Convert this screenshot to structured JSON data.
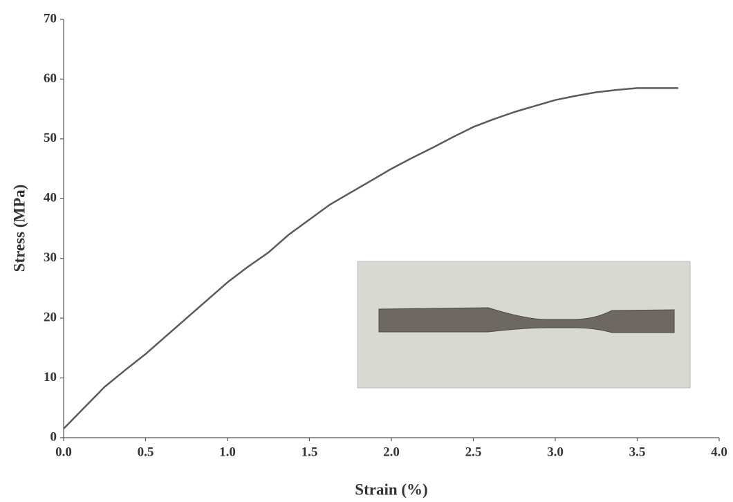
{
  "chart_data": {
    "type": "line",
    "x_label": "Strain (%)",
    "y_label": "Stress (MPa)",
    "x": [
      0,
      0.125,
      0.25,
      0.375,
      0.5,
      0.625,
      0.75,
      0.875,
      1.0,
      1.125,
      1.25,
      1.375,
      1.5,
      1.625,
      1.75,
      1.875,
      2.0,
      2.125,
      2.25,
      2.375,
      2.5,
      2.625,
      2.75,
      2.875,
      3.0,
      3.125,
      3.25,
      3.375,
      3.5,
      3.625,
      3.75
    ],
    "values": [
      1.5,
      5,
      8.5,
      11.3,
      14,
      17,
      20,
      23,
      26,
      28.6,
      31,
      34,
      36.5,
      39,
      41,
      43,
      45,
      46.8,
      48.5,
      50.3,
      52,
      53.3,
      54.5,
      55.5,
      56.5,
      57.2,
      57.8,
      58.2,
      58.5,
      58.5,
      58.5
    ],
    "color": "#5a5a5a",
    "xlim": [
      0,
      4.0
    ],
    "ylim": [
      0,
      70
    ],
    "xticks": [
      {
        "value": 0,
        "label": "0.0"
      },
      {
        "value": 0.5,
        "label": "0.5"
      },
      {
        "value": 1.0,
        "label": "1.0"
      },
      {
        "value": 1.5,
        "label": "1.5"
      },
      {
        "value": 2.0,
        "label": "2.0"
      },
      {
        "value": 2.5,
        "label": "2.5"
      },
      {
        "value": 3.0,
        "label": "3.0"
      },
      {
        "value": 3.5,
        "label": "3.5"
      },
      {
        "value": 4.0,
        "label": "4.0"
      }
    ],
    "yticks": [
      0,
      10,
      20,
      30,
      40,
      50,
      60,
      70
    ]
  }
}
